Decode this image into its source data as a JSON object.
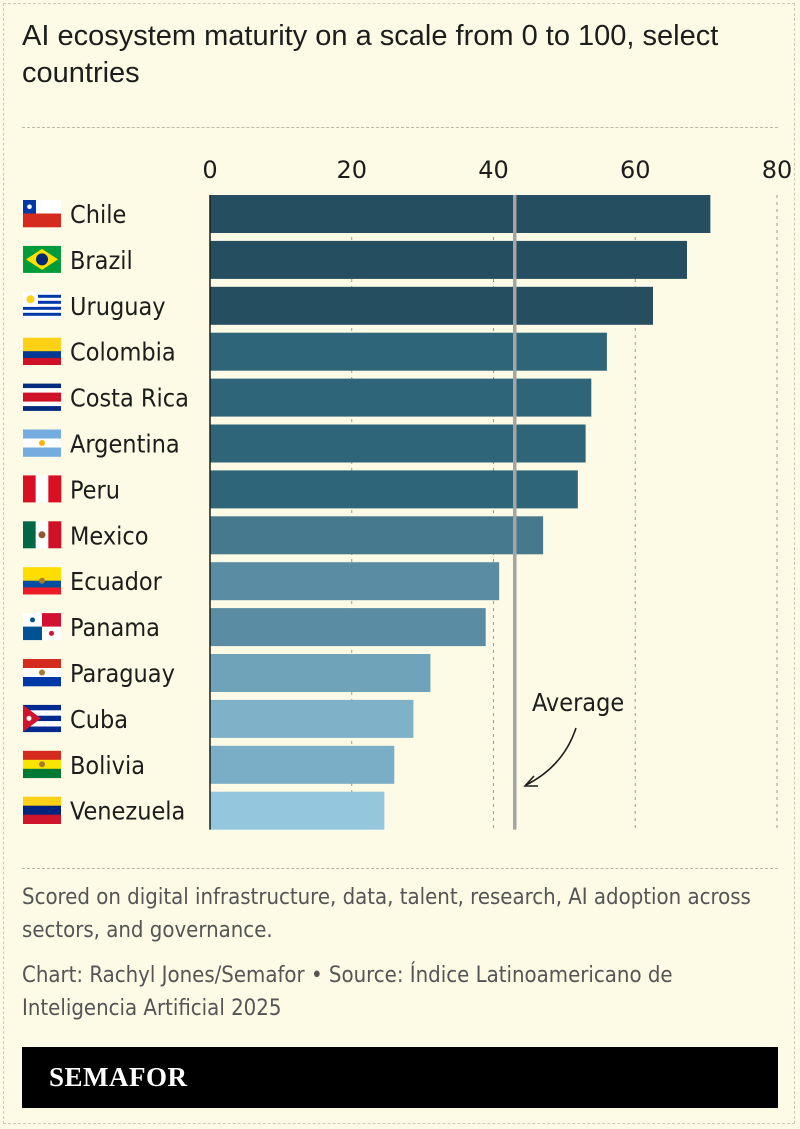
{
  "title": "AI ecosystem maturity on a scale from 0 to 100, select countries",
  "chart_data": {
    "type": "bar",
    "orientation": "horizontal",
    "title": "AI ecosystem maturity on a scale from 0 to 100, select countries",
    "categories": [
      "Chile",
      "Brazil",
      "Uruguay",
      "Colombia",
      "Costa Rica",
      "Argentina",
      "Peru",
      "Mexico",
      "Ecuador",
      "Panama",
      "Paraguay",
      "Cuba",
      "Bolivia",
      "Venezuela"
    ],
    "values": [
      70.6,
      67.3,
      62.5,
      56.0,
      53.8,
      53.0,
      51.9,
      47.0,
      40.8,
      38.9,
      31.1,
      28.7,
      26.0,
      24.6
    ],
    "colors": [
      "#264e61",
      "#264e61",
      "#264e61",
      "#2e6579",
      "#2e6579",
      "#2e6579",
      "#2e6579",
      "#46788e",
      "#5a8da4",
      "#5a8da4",
      "#6ea3ba",
      "#7fb2c8",
      "#79aec6",
      "#94c6dd"
    ],
    "xticks": [
      0,
      20,
      40,
      60,
      80
    ],
    "xlim": [
      0,
      80
    ],
    "grid": true,
    "average": {
      "value": 43.0,
      "label": "Average",
      "color": "#a5a5a5"
    }
  },
  "notes": {
    "description": "Scored on digital infrastructure, data, talent, research, AI adoption across sectors, and governance.",
    "credit": "Chart: Rachyl Jones/Semafor • Source: Índice Latinoamericano de Inteligencia Artificial 2025"
  },
  "footer": {
    "logo": "SEMAFOR"
  }
}
